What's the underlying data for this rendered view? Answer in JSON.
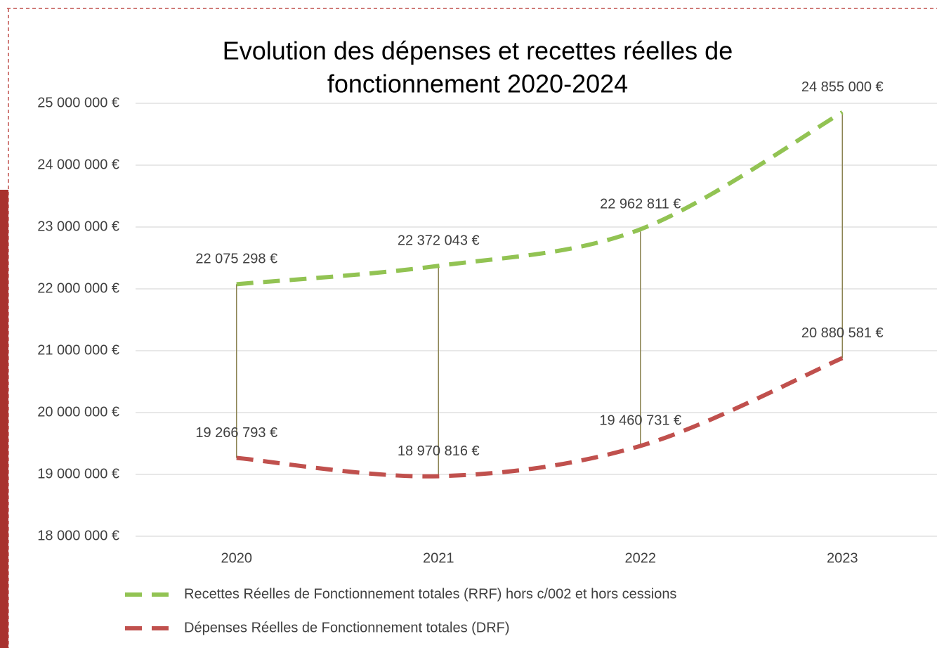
{
  "chart_data": {
    "type": "line",
    "title": [
      "Evolution des dépenses et recettes réelles de",
      "fonctionnement 2020-2024"
    ],
    "categories": [
      "2020",
      "2021",
      "2022",
      "2023"
    ],
    "series": [
      {
        "name": "Recettes Réelles de Fonctionnement totales (RRF) hors c/002 et hors cessions",
        "color": "#92c353",
        "values": [
          22075298,
          22372043,
          22962811,
          24855000
        ],
        "value_labels": [
          "22 075 298 €",
          "22 372 043 €",
          "22 962 811 €",
          "24 855 000 €"
        ]
      },
      {
        "name": "Dépenses Réelles de Fonctionnement totales (DRF)",
        "color": "#c0504d",
        "values": [
          19266793,
          18970816,
          19460731,
          20880581
        ],
        "value_labels": [
          "19 266 793 €",
          "18 970 816 €",
          "19 460 731 €",
          "20 880 581 €"
        ]
      }
    ],
    "ylim": [
      18000000,
      25000000
    ],
    "yticks": [
      {
        "value": 18000000,
        "label": "18 000 000 €"
      },
      {
        "value": 19000000,
        "label": "19 000 000 €"
      },
      {
        "value": 20000000,
        "label": "20 000 000 €"
      },
      {
        "value": 21000000,
        "label": "21 000 000 €"
      },
      {
        "value": 22000000,
        "label": "22 000 000 €"
      },
      {
        "value": 23000000,
        "label": "23 000 000 €"
      },
      {
        "value": 24000000,
        "label": "24 000 000 €"
      },
      {
        "value": 25000000,
        "label": "25 000 000 €"
      }
    ],
    "grid": true,
    "high_low_lines": true,
    "smooth": true,
    "dashed": true,
    "legend": "bottom"
  }
}
